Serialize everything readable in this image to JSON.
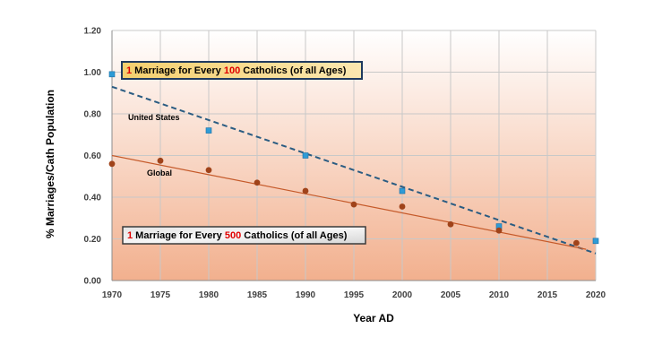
{
  "chart_data": {
    "type": "scatter",
    "xlabel": "Year AD",
    "ylabel": "% Marriages/Cath Population",
    "xlim": [
      1970,
      2020
    ],
    "ylim": [
      0.0,
      1.2
    ],
    "xticks": [
      1970,
      1975,
      1980,
      1985,
      1990,
      1995,
      2000,
      2005,
      2010,
      2015,
      2020
    ],
    "yticks": [
      "0.00",
      "0.20",
      "0.40",
      "0.60",
      "0.80",
      "1.00",
      "1.20"
    ],
    "grid": true,
    "series": [
      {
        "name": "United States",
        "marker": "square",
        "color": "#2e9bd6",
        "trendline": "dashed",
        "trend_color": "#2a5c82",
        "x": [
          1970,
          1980,
          1990,
          2000,
          2010,
          2020
        ],
        "y": [
          0.99,
          0.72,
          0.6,
          0.43,
          0.26,
          0.19
        ],
        "trend": [
          [
            1970,
            0.93
          ],
          [
            2020,
            0.13
          ]
        ]
      },
      {
        "name": "Global",
        "marker": "circle",
        "color": "#a0431a",
        "trendline": "solid",
        "trend_color": "#c55a2a",
        "x": [
          1970,
          1975,
          1980,
          1985,
          1990,
          1995,
          2000,
          2005,
          2010,
          2018
        ],
        "y": [
          0.56,
          0.575,
          0.53,
          0.47,
          0.43,
          0.365,
          0.355,
          0.27,
          0.24,
          0.18
        ],
        "trend": [
          [
            1970,
            0.6
          ],
          [
            2019,
            0.15
          ]
        ]
      }
    ],
    "annotations": [
      {
        "parts": [
          {
            "text": "1",
            "red": true
          },
          {
            "text": " Marriage for Every ",
            "red": false
          },
          {
            "text": "100",
            "red": true
          },
          {
            "text": " Catholics (of all Ages)",
            "red": false
          }
        ],
        "style": "gold"
      },
      {
        "parts": [
          {
            "text": "1",
            "red": true
          },
          {
            "text": " Marriage for Every ",
            "red": false
          },
          {
            "text": "500",
            "red": true
          },
          {
            "text": " Catholics (of all Ages)",
            "red": false
          }
        ],
        "style": "silver"
      }
    ]
  }
}
